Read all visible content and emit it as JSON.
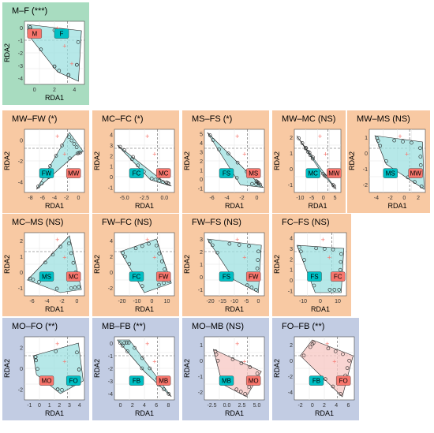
{
  "panels": [
    {
      "title": "M–F (***)",
      "bg": "green",
      "xticks": [
        "0",
        "2",
        "4"
      ],
      "yticks": [
        "0",
        "-1",
        "-2",
        "-3",
        "-4"
      ],
      "xlabel": "RDA1",
      "ylabel": "RDA2",
      "labels": [
        {
          "text": "M",
          "color": "#f8766d"
        },
        {
          "text": "F",
          "color": "#00bfc4"
        }
      ],
      "fill": "#9ee0e0"
    },
    {
      "title": "MW–FW (*)",
      "bg": "orange",
      "xticks": [
        "-8",
        "-6",
        "-4",
        "-2",
        "0"
      ],
      "yticks": [
        "0",
        "-2",
        "-4"
      ],
      "xlabel": "RDA1",
      "ylabel": "RDA2",
      "labels": [
        {
          "text": "FW",
          "color": "#00bfc4"
        },
        {
          "text": "MW",
          "color": "#f8766d"
        }
      ],
      "fill": "#9ee0e0"
    },
    {
      "title": "MC–FC (*)",
      "bg": "orange",
      "xticks": [
        "-5.0",
        "-2.5",
        "0.0"
      ],
      "yticks": [
        "4",
        "3",
        "2",
        "1",
        "0",
        "-1"
      ],
      "xlabel": "RDA1",
      "ylabel": "RDA2",
      "labels": [
        {
          "text": "FC",
          "color": "#00bfc4"
        },
        {
          "text": "MC",
          "color": "#f8766d"
        }
      ],
      "fill": "#9ee0e0"
    },
    {
      "title": "MS–FS (*)",
      "bg": "orange",
      "xticks": [
        "-6",
        "-4",
        "-2",
        "0"
      ],
      "yticks": [
        "5",
        "4",
        "3",
        "2",
        "1",
        "0",
        "-1"
      ],
      "xlabel": "RDA1",
      "ylabel": "RDA2",
      "labels": [
        {
          "text": "FS",
          "color": "#00bfc4"
        },
        {
          "text": "MS",
          "color": "#f8766d"
        }
      ],
      "fill": "#9ee0e0"
    },
    {
      "title": "MW–MC (NS)",
      "bg": "orange",
      "xticks": [
        "-10",
        "-5",
        "0",
        "5"
      ],
      "yticks": [
        "2",
        "1",
        "0",
        "-1"
      ],
      "xlabel": "RDA1",
      "ylabel": "RDA2",
      "labels": [
        {
          "text": "MC",
          "color": "#00bfc4"
        },
        {
          "text": "MW",
          "color": "#f8766d"
        }
      ],
      "fill": "#9ee0e0"
    },
    {
      "title": "MW–MS (NS)",
      "bg": "orange",
      "xticks": [
        "-4",
        "-2",
        "0",
        "2"
      ],
      "yticks": [
        "1",
        "0",
        "-1",
        "-2"
      ],
      "xlabel": "RDA1",
      "ylabel": "RDA2",
      "labels": [
        {
          "text": "MS",
          "color": "#00bfc4"
        },
        {
          "text": "MW",
          "color": "#f8766d"
        }
      ],
      "fill": "#9ee0e0"
    },
    {
      "title": "MC–MS (NS)",
      "bg": "orange",
      "xticks": [
        "-6",
        "-4",
        "-2",
        "0"
      ],
      "yticks": [
        "2",
        "1",
        "0",
        "-1"
      ],
      "xlabel": "RDA1",
      "ylabel": "RDA2",
      "labels": [
        {
          "text": "MS",
          "color": "#00bfc4"
        },
        {
          "text": "MC",
          "color": "#f8766d"
        }
      ],
      "fill": "#9ee0e0"
    },
    {
      "title": "FW–FC (NS)",
      "bg": "orange",
      "xticks": [
        "-20",
        "-10",
        "0",
        "10"
      ],
      "yticks": [
        "4",
        "2",
        "0",
        "-2"
      ],
      "xlabel": "RDA1",
      "ylabel": "RDA2",
      "labels": [
        {
          "text": "FC",
          "color": "#00bfc4"
        },
        {
          "text": "FW",
          "color": "#f8766d"
        }
      ],
      "fill": "#9ee0e0"
    },
    {
      "title": "FW–FS (NS)",
      "bg": "orange",
      "xticks": [
        "-20",
        "-15",
        "-10",
        "-5",
        "0"
      ],
      "yticks": [
        "3",
        "2",
        "1",
        "0",
        "-1"
      ],
      "xlabel": "RDA1",
      "ylabel": "RDA2",
      "labels": [
        {
          "text": "FS",
          "color": "#00bfc4"
        },
        {
          "text": "FW",
          "color": "#f8766d"
        }
      ],
      "fill": "#9ee0e0"
    },
    {
      "title": "FC–FS (NS)",
      "bg": "orange",
      "xticks": [
        "-10",
        "0",
        "10"
      ],
      "yticks": [
        "4",
        "3",
        "2",
        "1",
        "0",
        "-1"
      ],
      "xlabel": "RDA1",
      "ylabel": "RDA2",
      "labels": [
        {
          "text": "FS",
          "color": "#00bfc4"
        },
        {
          "text": "FC",
          "color": "#f8766d"
        }
      ],
      "fill": "#9ee0e0"
    },
    {
      "title": "MO–FO (**)",
      "bg": "blue",
      "xticks": [
        "-1",
        "0",
        "1",
        "2",
        "3",
        "4"
      ],
      "yticks": [
        "2",
        "0",
        "-2"
      ],
      "xlabel": "RDA1",
      "ylabel": "RDA2",
      "labels": [
        {
          "text": "MO",
          "color": "#f8766d"
        },
        {
          "text": "FO",
          "color": "#00bfc4"
        }
      ],
      "fill": "#9ee0e0"
    },
    {
      "title": "MB–FB (**)",
      "bg": "blue",
      "xticks": [
        "0",
        "2",
        "4",
        "6",
        "8"
      ],
      "yticks": [
        "0",
        "-1",
        "-2",
        "-3",
        "-4"
      ],
      "xlabel": "RDA1",
      "ylabel": "RDA2",
      "labels": [
        {
          "text": "FB",
          "color": "#00bfc4"
        },
        {
          "text": "MB",
          "color": "#f8766d"
        }
      ],
      "fill": "#9ee0e0"
    },
    {
      "title": "MO–MB (NS)",
      "bg": "blue",
      "xticks": [
        "-2.5",
        "0.0",
        "2.5",
        "5.0"
      ],
      "yticks": [
        "1",
        "0",
        "-1",
        "-2"
      ],
      "xlabel": "RDA1",
      "ylabel": "RDA2",
      "labels": [
        {
          "text": "MB",
          "color": "#00bfc4"
        },
        {
          "text": "MO",
          "color": "#f8766d"
        }
      ],
      "fill": "#f7c7c3"
    },
    {
      "title": "FO–FB (**)",
      "bg": "blue",
      "xticks": [
        "-2",
        "0",
        "2",
        "4",
        "6"
      ],
      "yticks": [
        "2",
        "0",
        "-2",
        "-4"
      ],
      "xlabel": "RDA1",
      "ylabel": "RDA2",
      "labels": [
        {
          "text": "FB",
          "color": "#00bfc4"
        },
        {
          "text": "FO",
          "color": "#f8766d"
        }
      ],
      "fill": "#f7c7c3"
    }
  ],
  "chart_data": [
    {
      "type": "scatter",
      "title": "M–F (***)",
      "xlabel": "RDA1",
      "ylabel": "RDA2",
      "groups": [
        "M",
        "F"
      ]
    },
    {
      "type": "scatter",
      "title": "MW–FW (*)",
      "xlabel": "RDA1",
      "ylabel": "RDA2",
      "groups": [
        "MW",
        "FW"
      ]
    },
    {
      "type": "scatter",
      "title": "MC–FC (*)",
      "xlabel": "RDA1",
      "ylabel": "RDA2",
      "groups": [
        "MC",
        "FC"
      ]
    },
    {
      "type": "scatter",
      "title": "MS–FS (*)",
      "xlabel": "RDA1",
      "ylabel": "RDA2",
      "groups": [
        "MS",
        "FS"
      ]
    },
    {
      "type": "scatter",
      "title": "MW–MC (NS)",
      "xlabel": "RDA1",
      "ylabel": "RDA2",
      "groups": [
        "MW",
        "MC"
      ]
    },
    {
      "type": "scatter",
      "title": "MW–MS (NS)",
      "xlabel": "RDA1",
      "ylabel": "RDA2",
      "groups": [
        "MW",
        "MS"
      ]
    },
    {
      "type": "scatter",
      "title": "MC–MS (NS)",
      "xlabel": "RDA1",
      "ylabel": "RDA2",
      "groups": [
        "MC",
        "MS"
      ]
    },
    {
      "type": "scatter",
      "title": "FW–FC (NS)",
      "xlabel": "RDA1",
      "ylabel": "RDA2",
      "groups": [
        "FW",
        "FC"
      ]
    },
    {
      "type": "scatter",
      "title": "FW–FS (NS)",
      "xlabel": "RDA1",
      "ylabel": "RDA2",
      "groups": [
        "FW",
        "FS"
      ]
    },
    {
      "type": "scatter",
      "title": "FC–FS (NS)",
      "xlabel": "RDA1",
      "ylabel": "RDA2",
      "groups": [
        "FC",
        "FS"
      ]
    },
    {
      "type": "scatter",
      "title": "MO–FO (**)",
      "xlabel": "RDA1",
      "ylabel": "RDA2",
      "groups": [
        "MO",
        "FO"
      ]
    },
    {
      "type": "scatter",
      "title": "MB–FB (**)",
      "xlabel": "RDA1",
      "ylabel": "RDA2",
      "groups": [
        "MB",
        "FB"
      ]
    },
    {
      "type": "scatter",
      "title": "MO–MB (NS)",
      "xlabel": "RDA1",
      "ylabel": "RDA2",
      "groups": [
        "MO",
        "MB"
      ]
    },
    {
      "type": "scatter",
      "title": "FO–FB (**)",
      "xlabel": "RDA1",
      "ylabel": "RDA2",
      "groups": [
        "FO",
        "FB"
      ]
    }
  ],
  "colors": {
    "green": "#a8dcc0",
    "orange": "#f8c9a3",
    "blue": "#c2cce3",
    "cyan": "#00bfc4",
    "red": "#f8766d"
  }
}
